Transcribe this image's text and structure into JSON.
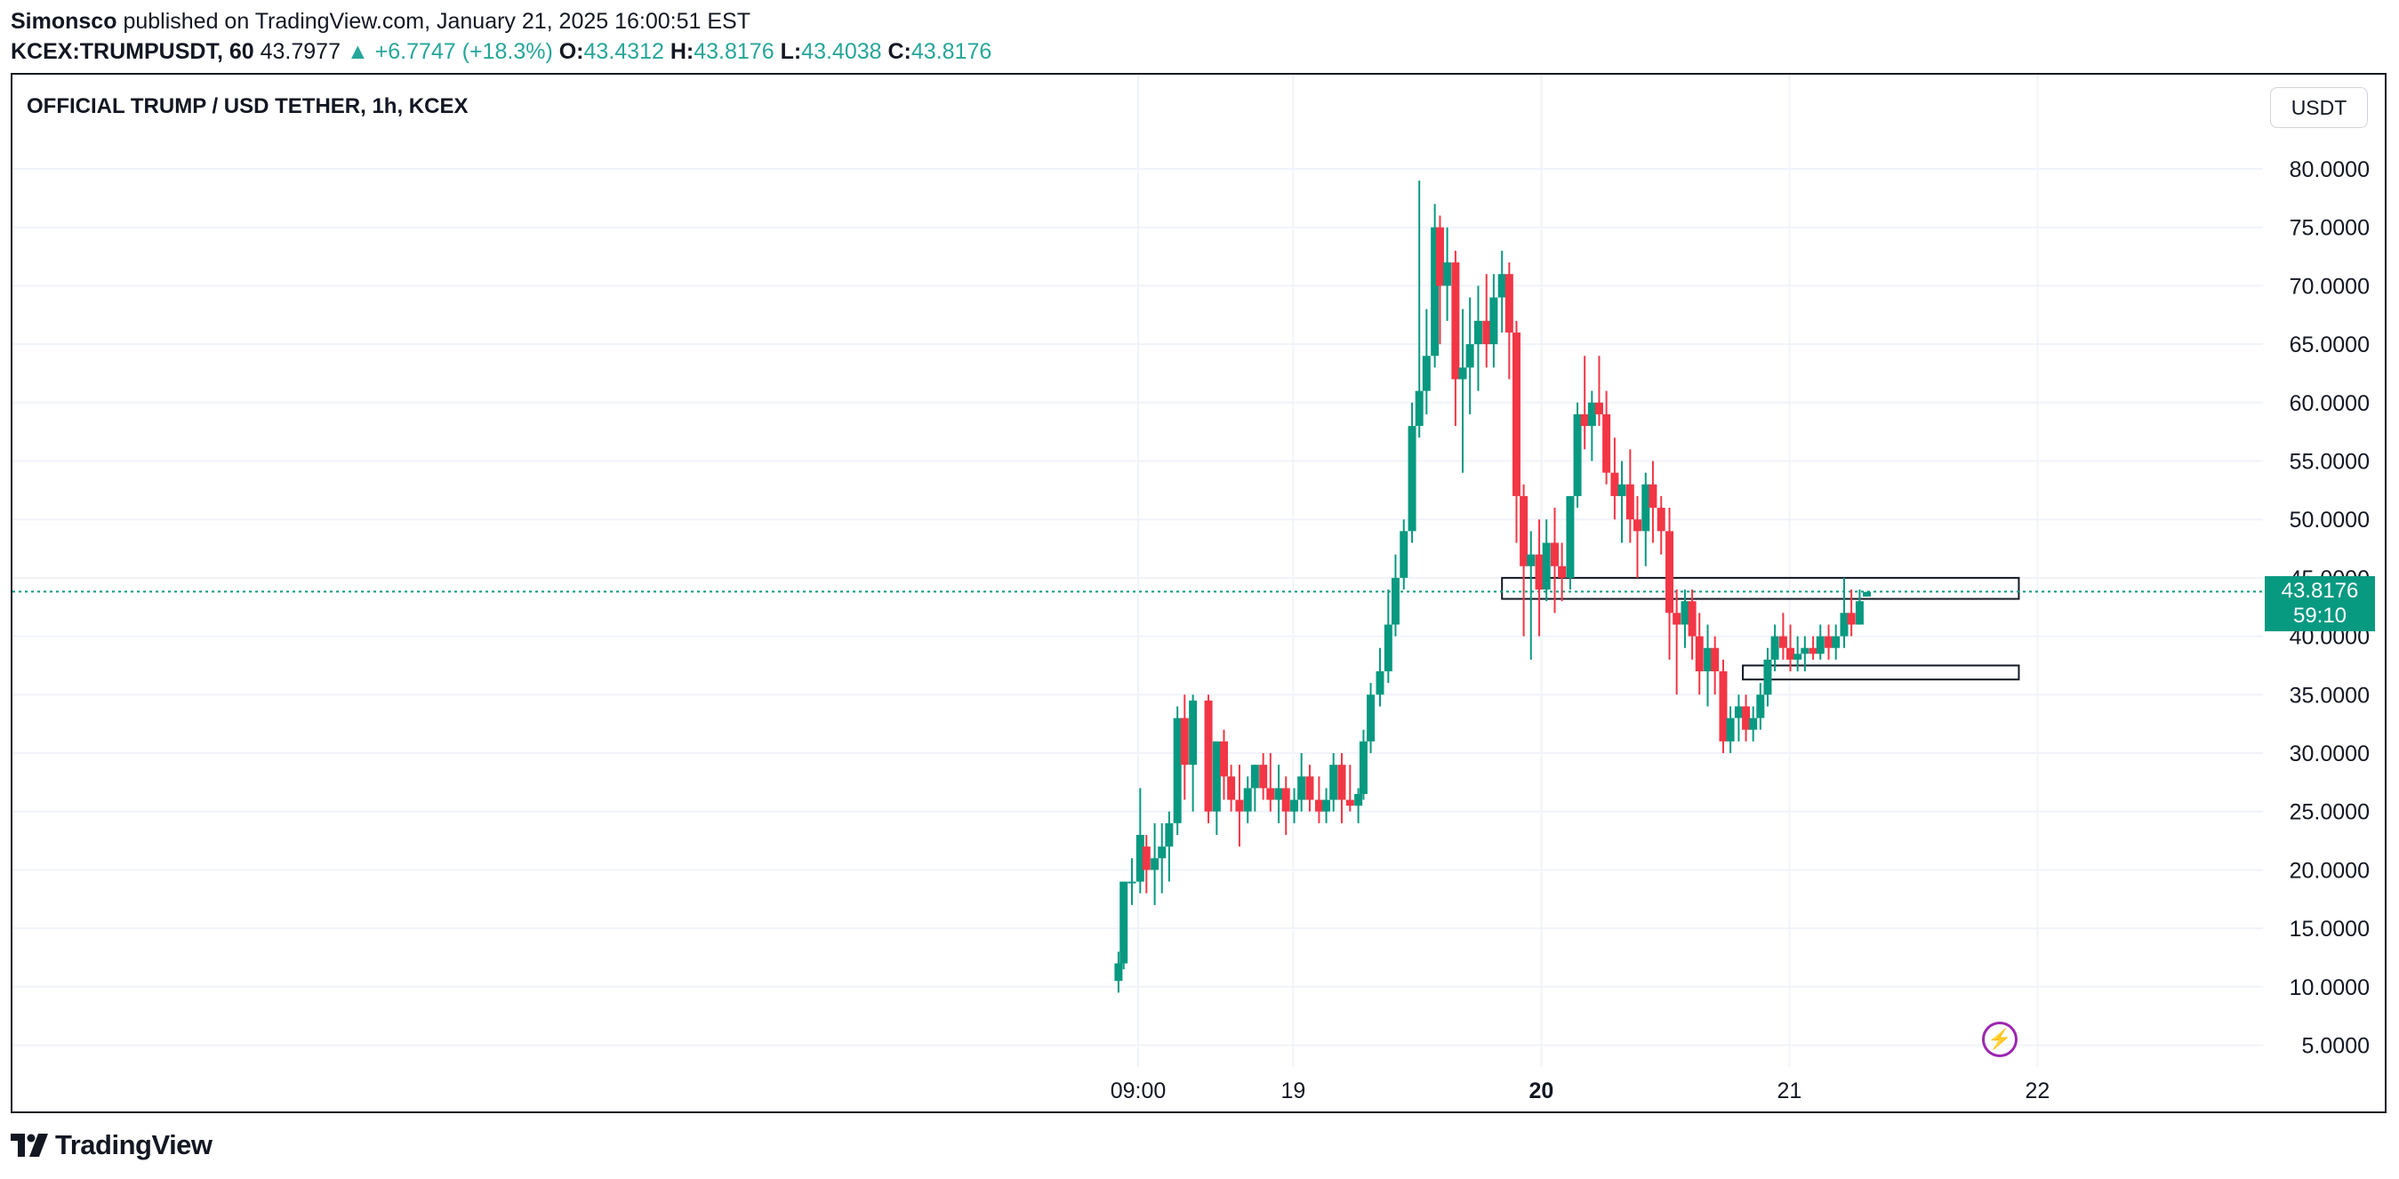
{
  "header": {
    "author": "Simonsco",
    "published_text": "published on TradingView.com, January 21, 2025 16:00:51 EST",
    "symbol": "KCEX:TRUMPUSDT, 60",
    "last": "43.7977",
    "change": "▲ +6.7747 (+18.3%)",
    "o_label": "O:",
    "o_value": "43.4312",
    "h_label": "H:",
    "h_value": "43.8176",
    "l_label": "L:",
    "l_value": "43.4038",
    "c_label": "C:",
    "c_value": "43.8176"
  },
  "chart_title": "OFFICIAL TRUMP / USD TETHER, 1h, KCEX",
  "currency": "USDT",
  "price_tag": {
    "price": "43.8176",
    "countdown": "59:10"
  },
  "logo_text": "TradingView",
  "icons": {
    "logo": "tradingview-logo-icon",
    "bolt": "lightning-icon"
  },
  "colors": {
    "up": "#089981",
    "down": "#f23645",
    "text": "#131722",
    "grid": "#f0f3fa"
  },
  "chart_data": {
    "type": "candlestick",
    "title": "OFFICIAL TRUMP / USD TETHER, 1h, KCEX",
    "ylim": [
      3,
      83
    ],
    "y_ticks": [
      {
        "value": 80,
        "label": "80.0000"
      },
      {
        "value": 75,
        "label": "75.0000"
      },
      {
        "value": 70,
        "label": "70.0000"
      },
      {
        "value": 65,
        "label": "65.0000"
      },
      {
        "value": 60,
        "label": "60.0000"
      },
      {
        "value": 55,
        "label": "55.0000"
      },
      {
        "value": 50,
        "label": "50.0000"
      },
      {
        "value": 45,
        "label": "45.0000"
      },
      {
        "value": 40,
        "label": "40.0000"
      },
      {
        "value": 35,
        "label": "35.0000"
      },
      {
        "value": 30,
        "label": "30.0000"
      },
      {
        "value": 25,
        "label": "25.0000"
      },
      {
        "value": 20,
        "label": "20.0000"
      },
      {
        "value": 15,
        "label": "15.0000"
      },
      {
        "value": 10,
        "label": "10.0000"
      },
      {
        "value": 5,
        "label": "5.0000"
      }
    ],
    "x_ticks": [
      {
        "label": "09:00",
        "hour": 0,
        "bold": false
      },
      {
        "label": "19",
        "hour": 15,
        "bold": false
      },
      {
        "label": "20",
        "hour": 39,
        "bold": true
      },
      {
        "label": "21",
        "hour": 63,
        "bold": false
      },
      {
        "label": "22",
        "hour": 87,
        "bold": false
      }
    ],
    "last_price": 43.8176,
    "zones": [
      {
        "from_hour": 35.2,
        "to_hour": 85.2,
        "low": 43.2,
        "high": 45.0
      },
      {
        "from_hour": 58.5,
        "to_hour": 85.2,
        "low": 36.3,
        "high": 37.5
      }
    ],
    "candles": [
      [
        -1.9,
        10.5,
        13.0,
        9.5,
        12.0
      ],
      [
        -1.4,
        12.0,
        19.0,
        11.5,
        19.0
      ],
      [
        -0.6,
        19.0,
        21.0,
        17.0,
        19.0
      ],
      [
        0.2,
        19.0,
        27.0,
        18.0,
        23.0
      ],
      [
        0.8,
        22.0,
        23.0,
        18.0,
        20.0
      ],
      [
        1.6,
        20.0,
        24.0,
        17.0,
        21.0
      ],
      [
        2.3,
        21.0,
        24.0,
        18.0,
        22.0
      ],
      [
        3.0,
        22.0,
        25.0,
        19.0,
        24.0
      ],
      [
        3.8,
        24.0,
        34.0,
        23.0,
        33.0
      ],
      [
        4.5,
        33.0,
        35.0,
        26.0,
        29.0
      ],
      [
        5.3,
        29.0,
        35.0,
        25.0,
        34.5
      ],
      [
        6.8,
        34.5,
        35.0,
        24.0,
        25.0
      ],
      [
        7.6,
        25.0,
        31.0,
        23.0,
        31.0
      ],
      [
        8.3,
        31.0,
        32.0,
        26.0,
        28.0
      ],
      [
        9.0,
        28.0,
        29.0,
        25.0,
        26.0
      ],
      [
        9.8,
        26.0,
        29.0,
        22.0,
        25.0
      ],
      [
        10.6,
        25.0,
        28.0,
        24.0,
        27.0
      ],
      [
        11.3,
        27.0,
        29.0,
        25.0,
        29.0
      ],
      [
        12.1,
        29.0,
        30.0,
        26.0,
        27.0
      ],
      [
        12.8,
        27.0,
        30.0,
        25.0,
        26.0
      ],
      [
        13.6,
        26.0,
        29.0,
        24.0,
        27.0
      ],
      [
        14.3,
        27.0,
        28.0,
        23.0,
        25.0
      ],
      [
        15.1,
        25.0,
        27.0,
        24.0,
        26.0
      ],
      [
        15.8,
        26.0,
        30.0,
        25.0,
        28.0
      ],
      [
        16.6,
        28.0,
        29.0,
        25.0,
        26.0
      ],
      [
        17.5,
        26.0,
        28.0,
        24.0,
        25.0
      ],
      [
        18.2,
        25.0,
        27.0,
        24.0,
        26.0
      ],
      [
        18.9,
        26.0,
        30.0,
        25.0,
        29.0
      ],
      [
        19.7,
        29.0,
        30.0,
        24.0,
        26.0
      ],
      [
        20.5,
        26.0,
        29.0,
        25.0,
        25.5
      ],
      [
        21.3,
        25.5,
        27.0,
        24.0,
        26.5
      ],
      [
        21.8,
        26.5,
        32.0,
        26.0,
        31.0
      ],
      [
        22.5,
        31.0,
        36.0,
        30.0,
        35.0
      ],
      [
        23.4,
        35.0,
        39.0,
        34.0,
        37.0
      ],
      [
        24.2,
        37.0,
        44.0,
        36.0,
        41.0
      ],
      [
        24.9,
        41.0,
        47.0,
        40.0,
        45.0
      ],
      [
        25.7,
        45.0,
        50.0,
        44.0,
        49.0
      ],
      [
        26.5,
        49.0,
        60.0,
        48.0,
        58.0
      ],
      [
        27.2,
        58.0,
        79.0,
        57.0,
        61.0
      ],
      [
        27.9,
        61.0,
        68.0,
        59.0,
        64.0
      ],
      [
        28.7,
        64.0,
        77.0,
        63.0,
        75.0
      ],
      [
        29.2,
        75.0,
        76.0,
        65.0,
        70.0
      ],
      [
        29.9,
        70.0,
        75.0,
        67.0,
        72.0
      ],
      [
        30.7,
        72.0,
        73.0,
        58.0,
        62.0
      ],
      [
        31.4,
        62.0,
        68.0,
        54.0,
        63.0
      ],
      [
        32.1,
        63.0,
        69.0,
        59.0,
        65.0
      ],
      [
        32.9,
        65.0,
        70.0,
        61.0,
        67.0
      ],
      [
        33.7,
        67.0,
        71.0,
        63.0,
        65.0
      ],
      [
        34.4,
        65.0,
        71.0,
        63.0,
        69.0
      ],
      [
        35.2,
        69.0,
        73.0,
        66.0,
        71.0
      ],
      [
        35.9,
        71.0,
        72.0,
        62.0,
        66.0
      ],
      [
        36.6,
        66.0,
        67.0,
        48.0,
        52.0
      ],
      [
        37.3,
        52.0,
        53.0,
        40.0,
        46.0
      ],
      [
        38.0,
        46.0,
        49.0,
        38.0,
        47.0
      ],
      [
        38.8,
        47.0,
        50.0,
        40.0,
        44.0
      ],
      [
        39.5,
        44.0,
        50.0,
        43.0,
        48.0
      ],
      [
        40.3,
        48.0,
        51.0,
        42.0,
        46.0
      ],
      [
        41.0,
        46.0,
        48.0,
        43.0,
        45.0
      ],
      [
        41.8,
        45.0,
        52.0,
        44.0,
        52.0
      ],
      [
        42.5,
        52.0,
        60.0,
        51.0,
        59.0
      ],
      [
        43.2,
        59.0,
        64.0,
        56.0,
        58.0
      ],
      [
        43.9,
        58.0,
        61.0,
        55.0,
        60.0
      ],
      [
        44.6,
        60.0,
        64.0,
        58.0,
        59.0
      ],
      [
        45.3,
        59.0,
        61.0,
        53.0,
        54.0
      ],
      [
        46.1,
        54.0,
        57.0,
        50.0,
        52.0
      ],
      [
        46.8,
        52.0,
        55.0,
        48.0,
        53.0
      ],
      [
        47.6,
        53.0,
        56.0,
        48.0,
        50.0
      ],
      [
        48.3,
        50.0,
        52.0,
        45.0,
        49.0
      ],
      [
        49.1,
        49.0,
        54.0,
        46.0,
        53.0
      ],
      [
        49.8,
        53.0,
        55.0,
        48.0,
        51.0
      ],
      [
        50.6,
        51.0,
        52.0,
        47.0,
        49.0
      ],
      [
        51.4,
        49.0,
        51.0,
        38.0,
        42.0
      ],
      [
        52.1,
        42.0,
        44.0,
        35.0,
        41.0
      ],
      [
        52.9,
        41.0,
        44.0,
        39.0,
        43.0
      ],
      [
        53.6,
        43.0,
        44.0,
        38.0,
        40.0
      ],
      [
        54.3,
        40.0,
        42.0,
        35.0,
        37.0
      ],
      [
        55.1,
        37.0,
        41.0,
        34.0,
        39.0
      ],
      [
        55.8,
        39.0,
        40.0,
        35.0,
        37.0
      ],
      [
        56.6,
        37.0,
        38.0,
        30.0,
        31.0
      ],
      [
        57.3,
        31.0,
        34.0,
        30.0,
        33.0
      ],
      [
        58.1,
        33.0,
        35.0,
        31.0,
        34.0
      ],
      [
        58.8,
        34.0,
        35.0,
        31.0,
        32.0
      ],
      [
        59.5,
        32.0,
        34.0,
        31.0,
        33.0
      ],
      [
        60.2,
        33.0,
        36.0,
        32.0,
        35.0
      ],
      [
        60.9,
        35.0,
        39.0,
        34.0,
        38.0
      ],
      [
        61.6,
        38.0,
        41.0,
        37.0,
        40.0
      ],
      [
        62.4,
        40.0,
        42.0,
        38.0,
        39.0
      ],
      [
        63.1,
        39.0,
        41.0,
        37.0,
        38.0
      ],
      [
        63.8,
        38.0,
        40.0,
        37.0,
        38.5
      ],
      [
        64.5,
        38.5,
        40.0,
        37.0,
        39.0
      ],
      [
        65.3,
        39.0,
        40.0,
        38.0,
        38.5
      ],
      [
        66.0,
        38.5,
        41.0,
        38.0,
        40.0
      ],
      [
        66.8,
        40.0,
        41.0,
        38.0,
        39.0
      ],
      [
        67.5,
        39.0,
        41.0,
        38.0,
        40.0
      ],
      [
        68.3,
        40.0,
        45.0,
        39.0,
        42.0
      ],
      [
        69.0,
        42.0,
        44.0,
        40.0,
        41.0
      ],
      [
        69.8,
        41.0,
        44.0,
        41.0,
        43.0
      ],
      [
        70.5,
        43.4,
        43.8,
        43.4,
        43.8
      ]
    ]
  }
}
